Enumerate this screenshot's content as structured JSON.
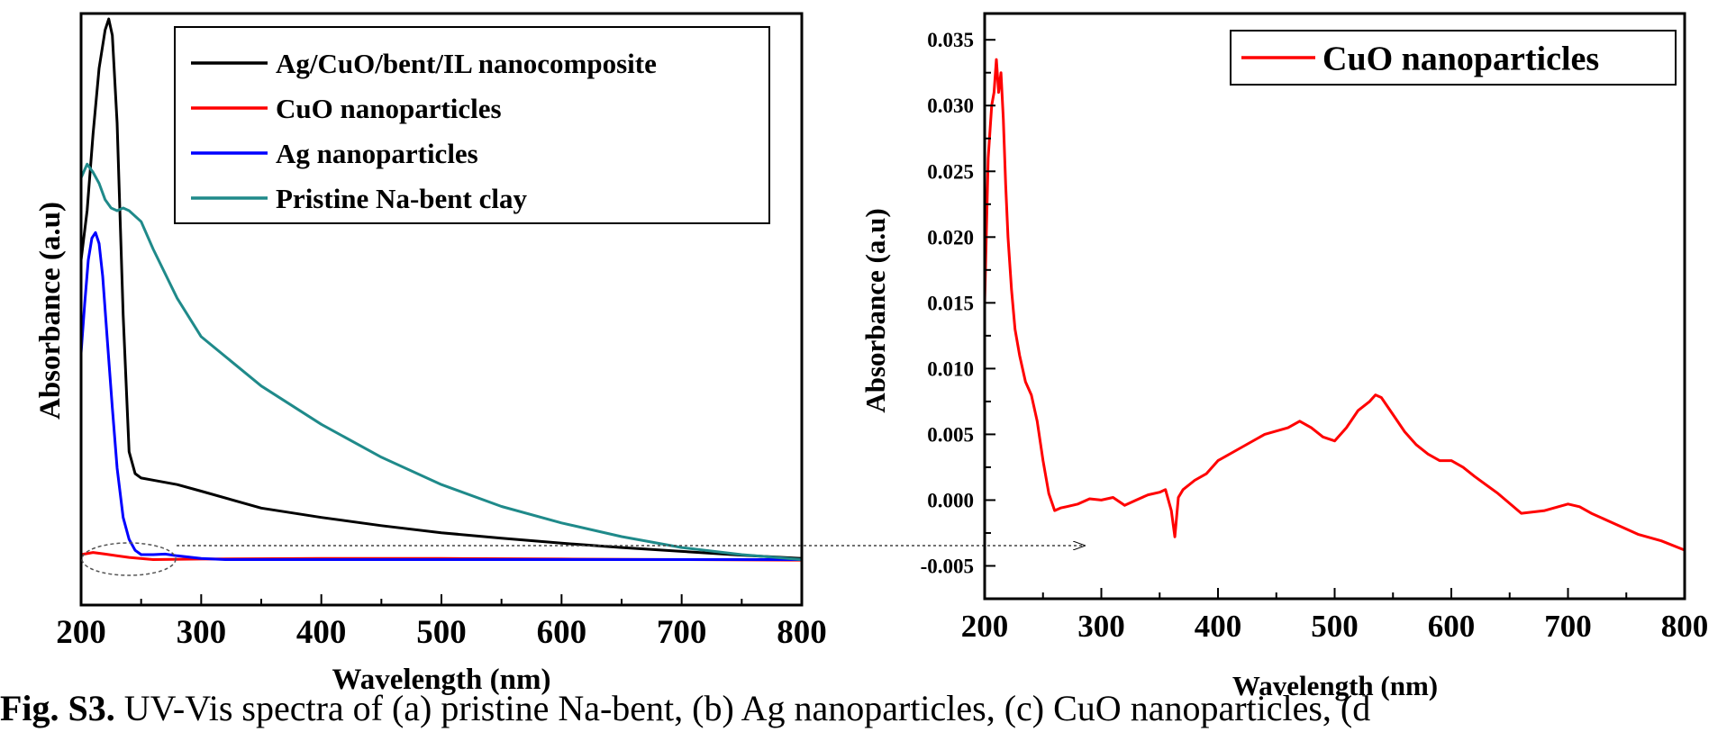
{
  "chart_data": [
    {
      "type": "line",
      "xlabel": "Wavelength (nm)",
      "ylabel": "Absorbance (a.u)",
      "xlim": [
        200,
        800
      ],
      "ylim": [
        -0.08,
        1.0
      ],
      "y_ticks_labeled": false,
      "x_ticks": [
        200,
        300,
        400,
        500,
        600,
        700,
        800
      ],
      "grid": false,
      "legend_position": "top-right",
      "series": [
        {
          "name": "Ag/CuO/bent/IL nanocomposite",
          "color": "#000000",
          "x": [
            200,
            205,
            210,
            215,
            220,
            223,
            226,
            230,
            235,
            240,
            245,
            250,
            260,
            280,
            300,
            350,
            400,
            450,
            500,
            550,
            600,
            650,
            700,
            750,
            800
          ],
          "y": [
            0.55,
            0.64,
            0.78,
            0.9,
            0.97,
            0.99,
            0.96,
            0.8,
            0.45,
            0.2,
            0.16,
            0.152,
            0.148,
            0.14,
            0.128,
            0.097,
            0.08,
            0.065,
            0.052,
            0.042,
            0.033,
            0.025,
            0.018,
            0.011,
            0.005
          ]
        },
        {
          "name": "CuO nanoparticles",
          "color": "#ff0000",
          "x": [
            200,
            210,
            220,
            240,
            260,
            300,
            400,
            500,
            600,
            700,
            800
          ],
          "y": [
            0.012,
            0.016,
            0.013,
            0.007,
            0.003,
            0.004,
            0.005,
            0.005,
            0.004,
            0.003,
            0.002
          ]
        },
        {
          "name": "Ag nanoparticles",
          "color": "#0000ff",
          "x": [
            200,
            203,
            206,
            209,
            212,
            215,
            218,
            222,
            226,
            230,
            235,
            240,
            245,
            250,
            260,
            270,
            280,
            300,
            320,
            400,
            500,
            600,
            700,
            800
          ],
          "y": [
            0.38,
            0.47,
            0.55,
            0.59,
            0.6,
            0.58,
            0.52,
            0.4,
            0.28,
            0.17,
            0.08,
            0.04,
            0.02,
            0.012,
            0.012,
            0.013,
            0.01,
            0.005,
            0.003,
            0.003,
            0.003,
            0.003,
            0.003,
            0.003
          ]
        },
        {
          "name": "Pristine Na-bent clay",
          "color": "#1f8a8a",
          "x": [
            200,
            205,
            210,
            215,
            220,
            225,
            230,
            235,
            240,
            250,
            260,
            280,
            300,
            350,
            400,
            450,
            500,
            550,
            600,
            650,
            700,
            750,
            800
          ],
          "y": [
            0.7,
            0.725,
            0.71,
            0.69,
            0.66,
            0.645,
            0.64,
            0.645,
            0.64,
            0.62,
            0.57,
            0.48,
            0.41,
            0.32,
            0.25,
            0.19,
            0.14,
            0.1,
            0.07,
            0.045,
            0.025,
            0.012,
            0.003
          ]
        }
      ]
    },
    {
      "type": "line",
      "xlabel": "Wavelength (nm)",
      "ylabel": "Absorbance (a.u)",
      "xlim": [
        200,
        800
      ],
      "ylim": [
        -0.0075,
        0.037
      ],
      "x_ticks": [
        200,
        300,
        400,
        500,
        600,
        700,
        800
      ],
      "y_ticks": [
        -0.005,
        0.0,
        0.005,
        0.01,
        0.015,
        0.02,
        0.025,
        0.03,
        0.035
      ],
      "y_tick_labels": [
        "-0.005",
        "0.000",
        "0.005",
        "0.010",
        "0.015",
        "0.020",
        "0.025",
        "0.030",
        "0.035"
      ],
      "grid": false,
      "legend_position": "top-right",
      "series": [
        {
          "name": "CuO nanoparticles",
          "color": "#ff0000",
          "x": [
            200,
            203,
            206,
            208,
            210,
            212,
            214,
            216,
            218,
            220,
            223,
            226,
            230,
            235,
            240,
            245,
            250,
            255,
            260,
            265,
            270,
            280,
            290,
            300,
            310,
            320,
            330,
            340,
            350,
            355,
            360,
            363,
            366,
            370,
            380,
            390,
            400,
            420,
            440,
            460,
            470,
            480,
            490,
            500,
            510,
            520,
            530,
            535,
            540,
            550,
            560,
            570,
            580,
            590,
            600,
            610,
            620,
            640,
            660,
            680,
            700,
            710,
            720,
            740,
            760,
            780,
            800
          ],
          "y": [
            0.015,
            0.026,
            0.03,
            0.031,
            0.0335,
            0.031,
            0.0325,
            0.029,
            0.024,
            0.02,
            0.016,
            0.013,
            0.011,
            0.009,
            0.008,
            0.006,
            0.003,
            0.0005,
            -0.0008,
            -0.0006,
            -0.0005,
            -0.0003,
            0.0001,
            0.0,
            0.0002,
            -0.0004,
            0.0,
            0.0004,
            0.0006,
            0.0008,
            -0.0008,
            -0.0028,
            0.0002,
            0.0008,
            0.0015,
            0.002,
            0.003,
            0.004,
            0.005,
            0.0055,
            0.006,
            0.0055,
            0.0048,
            0.0045,
            0.0055,
            0.0068,
            0.0075,
            0.008,
            0.0078,
            0.0065,
            0.0052,
            0.0042,
            0.0035,
            0.003,
            0.003,
            0.0025,
            0.0018,
            0.0005,
            -0.001,
            -0.0008,
            -0.0003,
            -0.0005,
            -0.001,
            -0.0018,
            -0.0026,
            -0.0031,
            -0.0038
          ]
        }
      ]
    }
  ],
  "caption": {
    "label": "Fig. S3.",
    "text": "UV-Vis spectra of (a) pristine Na-bent, (b) Ag nanoparticles, (c) CuO nanoparticles, (d"
  }
}
